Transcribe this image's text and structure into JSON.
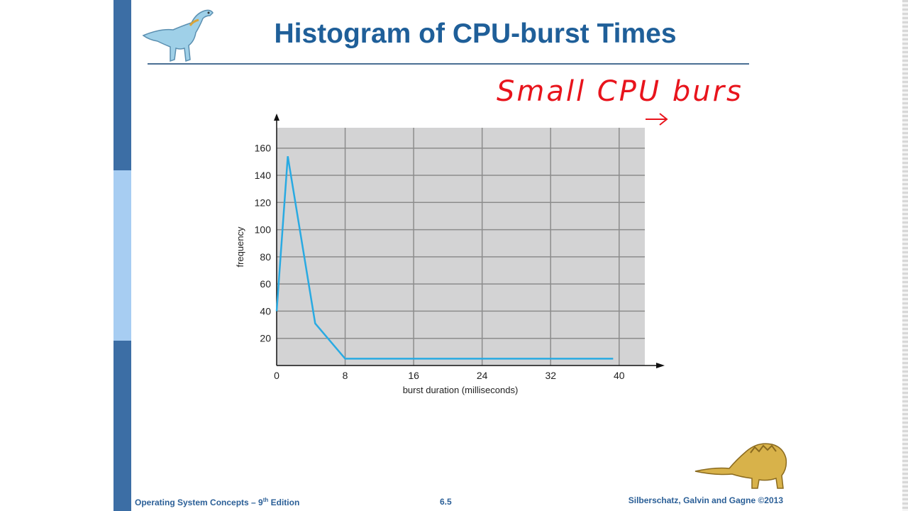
{
  "slide": {
    "title": "Histogram of CPU-burst Times",
    "footer_left_main": "Operating System Concepts – 9",
    "footer_left_sup": "th",
    "footer_left_end": " Edition",
    "page_number": "6.5",
    "footer_right": "Silberschatz, Galvin and Gagne ©2013",
    "handwritten_note": "Small CPU burst",
    "accent_color": "#1f5f99",
    "sidebar_color": "#3c6ea5",
    "logo_icons": [
      "dinosaur-logo-icon",
      "dinosaur-footer-icon"
    ]
  },
  "chart_data": {
    "type": "line",
    "title": "",
    "xlabel": "burst duration (milliseconds)",
    "ylabel": "frequency",
    "x_ticks": [
      0,
      8,
      16,
      24,
      32,
      40
    ],
    "y_ticks": [
      20,
      40,
      60,
      80,
      100,
      120,
      140,
      160
    ],
    "xlim": [
      0,
      43
    ],
    "ylim": [
      0,
      175
    ],
    "grid": true,
    "series": [
      {
        "color": "#29aae2",
        "x": [
          0,
          1.3,
          4.5,
          8,
          12,
          16,
          20,
          24,
          28,
          32,
          36,
          39.3
        ],
        "y": [
          40,
          154,
          31,
          5,
          5,
          5,
          5,
          5,
          5,
          5,
          5,
          5
        ]
      }
    ]
  }
}
